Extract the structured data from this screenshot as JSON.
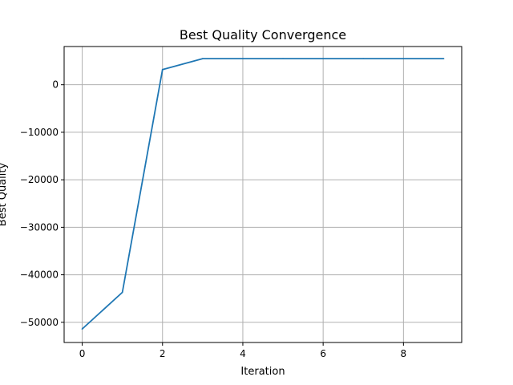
{
  "chart_data": {
    "type": "line",
    "title": "Best Quality Convergence",
    "xlabel": "Iteration",
    "ylabel": "Best Quality",
    "x": [
      0,
      1,
      2,
      3,
      4,
      5,
      6,
      7,
      8,
      9
    ],
    "series": [
      {
        "values": [
          -51400,
          -43700,
          3200,
          5500,
          5500,
          5500,
          5500,
          5500,
          5500,
          5500
        ],
        "color": "#1f77b4"
      }
    ],
    "xlim": [
      -0.45,
      9.45
    ],
    "ylim": [
      -54250,
      8050
    ],
    "xticks": [
      0,
      2,
      4,
      6,
      8
    ],
    "yticks": [
      -50000,
      -40000,
      -30000,
      -20000,
      -10000,
      0
    ],
    "ytick_labels": [
      "−50000",
      "−40000",
      "−30000",
      "−20000",
      "−10000",
      "0"
    ],
    "grid": true,
    "legend": "none"
  }
}
